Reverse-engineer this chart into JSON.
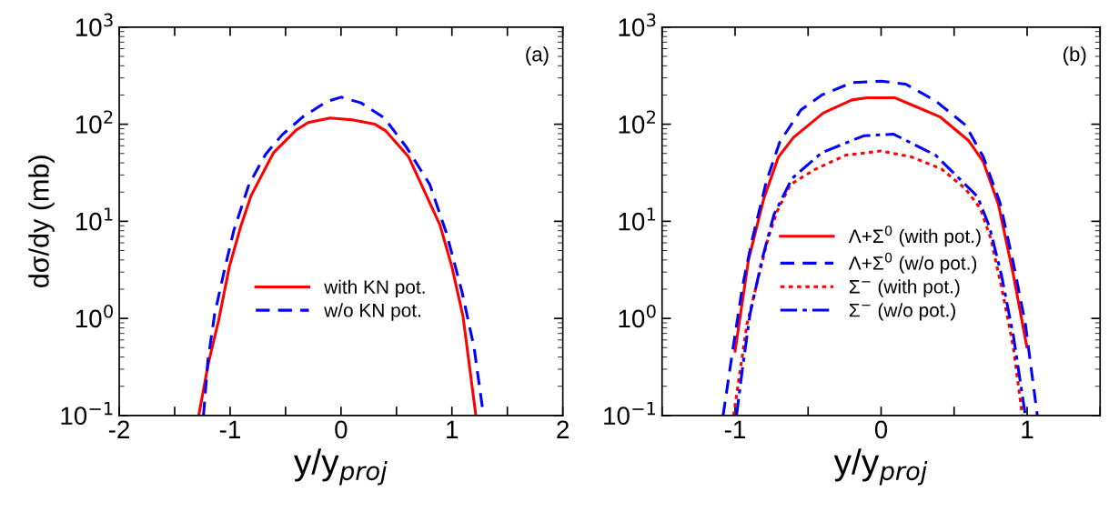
{
  "chart_data": [
    {
      "type": "line",
      "xlabel": "y/y$_{proj}$",
      "ylabel": "dσ/dy (mb)",
      "log": "y",
      "xlim": [
        -2,
        2
      ],
      "ylim": [
        0.1,
        1000
      ],
      "xticks": [
        -2,
        {
          "value": -1.5,
          "label": null
        },
        -1,
        {
          "value": -0.5,
          "label": null
        },
        0,
        {
          "value": 0.5,
          "label": null
        },
        1,
        {
          "value": 1.5,
          "label": null
        },
        2
      ],
      "yticks": [
        {
          "value": 0.1,
          "label": "10$^{−1}$"
        },
        {
          "value": 1,
          "label": "10$^{0}$"
        },
        {
          "value": 10,
          "label": "10$^{1}$"
        },
        {
          "value": 100,
          "label": "10$^{2}$"
        },
        {
          "value": 1000,
          "label": "10$^{3}$"
        }
      ],
      "annotations": [
        "(a)"
      ],
      "legend": "lower center",
      "grid": false,
      "series": [
        {
          "name": "with KN pot.",
          "color": "#ff0000",
          "line_style": "solid",
          "x": [
            -1.283,
            -1.195,
            -1.104,
            -1.007,
            -0.906,
            -0.81,
            -0.61,
            -0.405,
            -0.296,
            -0.099,
            0.1,
            0.305,
            0.4,
            0.61,
            0.893,
            1.0,
            1.1,
            1.216
          ],
          "values": [
            0.1,
            0.35,
            0.95,
            3.4,
            8.7,
            18.5,
            50.6,
            87,
            104,
            116,
            111,
            100,
            86,
            46,
            9.1,
            3.4,
            1.05,
            0.1
          ]
        },
        {
          "name": "w/o KN pot.",
          "color": "#0000ff",
          "line_style": "dashed",
          "x": [
            -1.24,
            -1.2,
            -1.14,
            -1.05,
            -0.966,
            -0.83,
            -0.68,
            -0.53,
            -0.34,
            -0.13,
            0,
            0.18,
            0.39,
            0.59,
            0.8,
            0.95,
            1.09,
            1.2,
            1.285
          ],
          "values": [
            0.1,
            0.37,
            1.1,
            3.2,
            8.1,
            24,
            49,
            78,
            120,
            171,
            190,
            166,
            116,
            58,
            24,
            7.6,
            1.9,
            0.5,
            0.1
          ]
        }
      ]
    },
    {
      "type": "line",
      "xlabel": "y/y$_{proj}$",
      "log": "y",
      "xlim": [
        -1.5,
        1.5
      ],
      "ylim": [
        0.1,
        1000
      ],
      "xticks": [
        {
          "value": -1.5,
          "label": null
        },
        -1,
        {
          "value": -0.5,
          "label": null
        },
        0,
        {
          "value": 0.5,
          "label": null
        },
        1,
        {
          "value": 1.5,
          "label": null
        }
      ],
      "yticks": [
        {
          "value": 0.1,
          "label": "10$^{−1}$"
        },
        {
          "value": 1,
          "label": "10$^{0}$"
        },
        {
          "value": 10,
          "label": "10$^{1}$"
        },
        {
          "value": 100,
          "label": "10$^{2}$"
        },
        {
          "value": 1000,
          "label": "10$^{3}$"
        }
      ],
      "annotations": [
        "(b)"
      ],
      "legend": "lower center",
      "grid": false,
      "series": [
        {
          "name": "Λ+Σ$^{0}$ (with pot.)",
          "color": "#ff0000",
          "line_style": "solid",
          "x": [
            -1.0,
            -0.908,
            -0.805,
            -0.703,
            -0.6,
            -0.395,
            -0.2,
            -0.098,
            0.096,
            0.404,
            0.598,
            0.7,
            0.803,
            0.906,
            0.998
          ],
          "values": [
            0.46,
            4.0,
            16.8,
            46,
            73,
            131,
            178,
            187,
            187,
            119,
            68,
            41,
            15,
            2.8,
            0.51
          ]
        },
        {
          "name": "Λ+Σ$^{0}$ (w/o pot.)",
          "color": "#0000ff",
          "line_style": "dashed",
          "x": [
            -1.082,
            -1.02,
            -0.95,
            -0.887,
            -0.785,
            -0.693,
            -0.55,
            -0.406,
            -0.2,
            0,
            0.168,
            0.373,
            0.578,
            0.7,
            0.814,
            0.906,
            0.988,
            1.07
          ],
          "values": [
            0.1,
            0.43,
            2.1,
            6.1,
            26,
            66,
            140,
            200,
            268,
            278,
            259,
            174,
            98,
            46,
            15.6,
            3.7,
            0.88,
            0.1
          ]
        },
        {
          "name": "Σ$^{−}$ (with pot.)",
          "color": "#ff0000",
          "line_style": "dotted",
          "x": [
            -1.01,
            -0.97,
            -0.918,
            -0.836,
            -0.775,
            -0.713,
            -0.62,
            -0.447,
            -0.242,
            0,
            0.209,
            0.414,
            0.578,
            0.68,
            0.752,
            0.834,
            0.906,
            0.967
          ],
          "values": [
            0.1,
            0.26,
            0.88,
            2.8,
            6.6,
            12.6,
            24,
            34.6,
            48,
            53,
            46,
            34.6,
            21.6,
            13.5,
            6.6,
            1.8,
            0.5,
            0.1
          ]
        },
        {
          "name": "Σ$^{−}$ (w/o pot.)",
          "color": "#0000ff",
          "line_style": "dashdot",
          "x": [
            -0.99,
            -0.95,
            -0.898,
            -0.816,
            -0.734,
            -0.61,
            -0.406,
            -0.119,
            0.086,
            0.373,
            0.66,
            0.742,
            0.824,
            0.906,
            0.988
          ],
          "values": [
            0.1,
            0.3,
            1.1,
            4.0,
            11.7,
            27.7,
            51,
            76,
            79,
            48,
            18,
            8.8,
            2.8,
            0.66,
            0.1
          ]
        }
      ]
    }
  ]
}
